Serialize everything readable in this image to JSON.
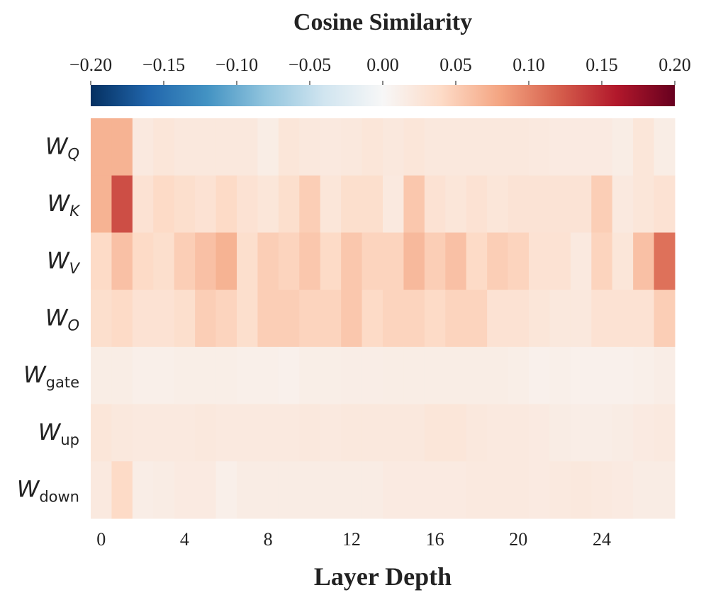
{
  "chart_data": {
    "type": "heatmap",
    "colorbar_title": "Cosine Similarity",
    "xlabel": "Layer Depth",
    "x": [
      0,
      1,
      2,
      3,
      4,
      5,
      6,
      7,
      8,
      9,
      10,
      11,
      12,
      13,
      14,
      15,
      16,
      17,
      18,
      19,
      20,
      21,
      22,
      23,
      24,
      25,
      26,
      27
    ],
    "xticks": [
      0,
      4,
      8,
      12,
      16,
      20,
      24
    ],
    "y_categories": [
      {
        "symbol": "W",
        "subscript": "Q"
      },
      {
        "symbol": "W",
        "subscript": "K"
      },
      {
        "symbol": "W",
        "subscript": "V"
      },
      {
        "symbol": "W",
        "subscript": "O"
      },
      {
        "symbol": "W",
        "subscript": "gate"
      },
      {
        "symbol": "W",
        "subscript": "up"
      },
      {
        "symbol": "W",
        "subscript": "down"
      }
    ],
    "values": [
      [
        0.07,
        0.07,
        0.02,
        0.025,
        0.022,
        0.022,
        0.022,
        0.022,
        0.015,
        0.025,
        0.022,
        0.02,
        0.022,
        0.025,
        0.022,
        0.025,
        0.022,
        0.022,
        0.022,
        0.022,
        0.022,
        0.02,
        0.018,
        0.018,
        0.018,
        0.015,
        0.025,
        0.015
      ],
      [
        0.07,
        0.13,
        0.03,
        0.04,
        0.035,
        0.03,
        0.04,
        0.03,
        0.025,
        0.035,
        0.05,
        0.025,
        0.035,
        0.035,
        0.02,
        0.055,
        0.03,
        0.025,
        0.03,
        0.025,
        0.028,
        0.028,
        0.028,
        0.028,
        0.05,
        0.02,
        0.025,
        0.03
      ],
      [
        0.04,
        0.06,
        0.04,
        0.035,
        0.05,
        0.06,
        0.07,
        0.035,
        0.05,
        0.045,
        0.055,
        0.04,
        0.055,
        0.045,
        0.045,
        0.065,
        0.05,
        0.06,
        0.04,
        0.05,
        0.045,
        0.03,
        0.03,
        0.02,
        0.045,
        0.025,
        0.06,
        0.11
      ],
      [
        0.035,
        0.04,
        0.03,
        0.03,
        0.035,
        0.05,
        0.045,
        0.035,
        0.05,
        0.05,
        0.045,
        0.045,
        0.055,
        0.04,
        0.045,
        0.045,
        0.04,
        0.045,
        0.045,
        0.03,
        0.03,
        0.025,
        0.022,
        0.022,
        0.03,
        0.03,
        0.03,
        0.05
      ],
      [
        0.015,
        0.015,
        0.012,
        0.012,
        0.013,
        0.013,
        0.013,
        0.012,
        0.012,
        0.01,
        0.013,
        0.013,
        0.014,
        0.014,
        0.015,
        0.015,
        0.015,
        0.015,
        0.015,
        0.015,
        0.013,
        0.01,
        0.012,
        0.01,
        0.01,
        0.01,
        0.012,
        0.014
      ],
      [
        0.025,
        0.022,
        0.02,
        0.02,
        0.02,
        0.022,
        0.02,
        0.02,
        0.02,
        0.02,
        0.022,
        0.02,
        0.022,
        0.022,
        0.022,
        0.022,
        0.025,
        0.025,
        0.022,
        0.02,
        0.02,
        0.018,
        0.016,
        0.014,
        0.014,
        0.016,
        0.018,
        0.02
      ],
      [
        0.02,
        0.04,
        0.014,
        0.016,
        0.018,
        0.018,
        0.012,
        0.016,
        0.016,
        0.016,
        0.016,
        0.016,
        0.016,
        0.016,
        0.018,
        0.018,
        0.018,
        0.018,
        0.02,
        0.02,
        0.02,
        0.018,
        0.02,
        0.022,
        0.02,
        0.018,
        0.016,
        0.016
      ]
    ],
    "zlim": [
      -0.2,
      0.2
    ],
    "zticks": [
      {
        "value": -0.2,
        "label": "−0.20"
      },
      {
        "value": -0.15,
        "label": "−0.15"
      },
      {
        "value": -0.1,
        "label": "−0.10"
      },
      {
        "value": -0.05,
        "label": "−0.05"
      },
      {
        "value": 0,
        "label": "0.00"
      },
      0.05,
      {
        "value": 0.1,
        "label": "0.10"
      },
      0.15,
      {
        "value": 0.2,
        "label": "0.20"
      }
    ],
    "colormap": [
      "#053061",
      "#2166ac",
      "#4393c3",
      "#92c5de",
      "#d1e5f0",
      "#f7f7f7",
      "#fddbc7",
      "#f4a582",
      "#d6604d",
      "#b2182b",
      "#67001f"
    ]
  }
}
